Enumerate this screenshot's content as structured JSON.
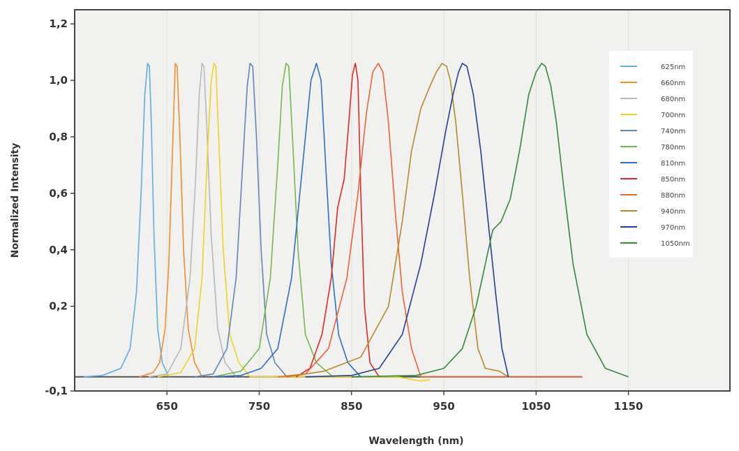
{
  "chart_data": {
    "type": "line",
    "title": "",
    "xlabel": "Wavelength (nm)",
    "ylabel": "Normalized Intensity",
    "xlim": [
      550,
      1260
    ],
    "ylim": [
      -0.1,
      1.25
    ],
    "x_ticks": [
      650,
      750,
      850,
      950,
      1050,
      1150
    ],
    "x_tick_labels": [
      "650",
      "750",
      "850",
      "950",
      "1050",
      "1150"
    ],
    "y_ticks": [
      -0.1,
      0.2,
      0.4,
      0.6,
      0.8,
      1.0,
      1.2
    ],
    "y_tick_labels": [
      "-0,1",
      "0,2",
      "0,4",
      "0,6",
      "0,8",
      "1,0",
      "1,2"
    ],
    "baseline": -0.05,
    "grid": "vertical",
    "legend_position": "top-right",
    "series": [
      {
        "name": "625nm",
        "color": "#5aaee0",
        "x": [
          560,
          580,
          600,
          610,
          617,
          622,
          626,
          629,
          631,
          633,
          636,
          640,
          645,
          652
        ],
        "y": [
          -0.05,
          -0.045,
          -0.02,
          0.05,
          0.25,
          0.6,
          0.95,
          1.06,
          1.05,
          0.85,
          0.45,
          0.12,
          0.0,
          -0.05
        ]
      },
      {
        "name": "660nm",
        "color": "#f08c2c",
        "x": [
          620,
          635,
          642,
          648,
          652,
          656,
          659,
          661,
          664,
          668,
          673,
          680,
          688
        ],
        "y": [
          -0.05,
          -0.035,
          0.0,
          0.12,
          0.35,
          0.75,
          1.06,
          1.05,
          0.8,
          0.4,
          0.12,
          0.0,
          -0.05
        ]
      },
      {
        "name": "680nm",
        "color": "#b8b8b8",
        "x": [
          630,
          650,
          665,
          675,
          681,
          685,
          688,
          690,
          693,
          698,
          705,
          713,
          725
        ],
        "y": [
          -0.05,
          -0.04,
          0.05,
          0.3,
          0.65,
          0.95,
          1.06,
          1.05,
          0.85,
          0.45,
          0.12,
          0.0,
          -0.05
        ]
      },
      {
        "name": "700nm",
        "color": "#f2d21c",
        "x": [
          640,
          665,
          680,
          688,
          694,
          698,
          701,
          703,
          706,
          711,
          718,
          728,
          740,
          900,
          925,
          935
        ],
        "y": [
          -0.05,
          -0.035,
          0.05,
          0.3,
          0.75,
          1.0,
          1.06,
          1.05,
          0.8,
          0.4,
          0.1,
          0.0,
          -0.05,
          -0.05,
          -0.065,
          -0.06
        ]
      },
      {
        "name": "740nm",
        "color": "#5f85bb",
        "x": [
          680,
          700,
          715,
          725,
          732,
          737,
          740,
          743,
          747,
          752,
          758,
          767,
          780
        ],
        "y": [
          -0.05,
          -0.04,
          0.05,
          0.3,
          0.7,
          0.98,
          1.06,
          1.05,
          0.8,
          0.4,
          0.1,
          0.0,
          -0.05
        ]
      },
      {
        "name": "780nm",
        "color": "#72b84a",
        "x": [
          700,
          730,
          750,
          762,
          770,
          775,
          779,
          782,
          786,
          792,
          800,
          812,
          830
        ],
        "y": [
          -0.05,
          -0.03,
          0.05,
          0.3,
          0.7,
          0.98,
          1.06,
          1.05,
          0.8,
          0.4,
          0.1,
          0.0,
          -0.05
        ]
      },
      {
        "name": "810nm",
        "color": "#2a6fc4",
        "x": [
          700,
          730,
          752,
          770,
          785,
          797,
          806,
          812,
          817,
          822,
          828,
          836,
          846,
          860
        ],
        "y": [
          -0.05,
          -0.045,
          -0.02,
          0.05,
          0.3,
          0.7,
          1.0,
          1.06,
          1.0,
          0.7,
          0.35,
          0.1,
          0.0,
          -0.05
        ]
      },
      {
        "name": "850nm",
        "color": "#e02820",
        "x": [
          790,
          805,
          818,
          828,
          835,
          842,
          847,
          851,
          854,
          857,
          860,
          864,
          870,
          880
        ],
        "y": [
          -0.05,
          -0.02,
          0.1,
          0.3,
          0.55,
          0.65,
          0.85,
          1.02,
          1.06,
          1.0,
          0.6,
          0.2,
          0.0,
          -0.05
        ]
      },
      {
        "name": "880nm",
        "color": "#f06034",
        "x": [
          770,
          800,
          825,
          845,
          857,
          866,
          873,
          879,
          884,
          890,
          897,
          905,
          915,
          925,
          1100
        ],
        "y": [
          -0.05,
          -0.04,
          0.05,
          0.3,
          0.6,
          0.88,
          1.03,
          1.06,
          1.03,
          0.85,
          0.55,
          0.25,
          0.05,
          -0.05,
          -0.05
        ]
      },
      {
        "name": "940nm",
        "color": "#b88a24",
        "x": [
          780,
          820,
          860,
          890,
          905,
          915,
          925,
          935,
          942,
          948,
          953,
          957,
          963,
          970,
          978,
          987,
          995,
          1010,
          1020
        ],
        "y": [
          -0.05,
          -0.03,
          0.02,
          0.2,
          0.5,
          0.75,
          0.9,
          0.98,
          1.03,
          1.06,
          1.05,
          1.0,
          0.85,
          0.6,
          0.3,
          0.05,
          -0.02,
          -0.03,
          -0.05
        ]
      },
      {
        "name": "970nm",
        "color": "#1f3f94",
        "x": [
          800,
          850,
          880,
          905,
          925,
          940,
          952,
          960,
          966,
          970,
          975,
          982,
          990,
          998,
          1006,
          1013,
          1020
        ],
        "y": [
          -0.05,
          -0.045,
          -0.02,
          0.1,
          0.35,
          0.6,
          0.82,
          0.95,
          1.03,
          1.06,
          1.05,
          0.95,
          0.75,
          0.5,
          0.25,
          0.05,
          -0.05
        ]
      },
      {
        "name": "1050nm",
        "color": "#2f8a38",
        "x": [
          850,
          920,
          950,
          970,
          985,
          995,
          1003,
          1012,
          1022,
          1032,
          1042,
          1050,
          1056,
          1060,
          1066,
          1072,
          1080,
          1090,
          1105,
          1125,
          1150
        ],
        "y": [
          -0.05,
          -0.045,
          -0.02,
          0.05,
          0.2,
          0.35,
          0.47,
          0.5,
          0.58,
          0.75,
          0.95,
          1.03,
          1.06,
          1.05,
          0.98,
          0.85,
          0.62,
          0.35,
          0.1,
          -0.02,
          -0.05
        ]
      }
    ]
  }
}
